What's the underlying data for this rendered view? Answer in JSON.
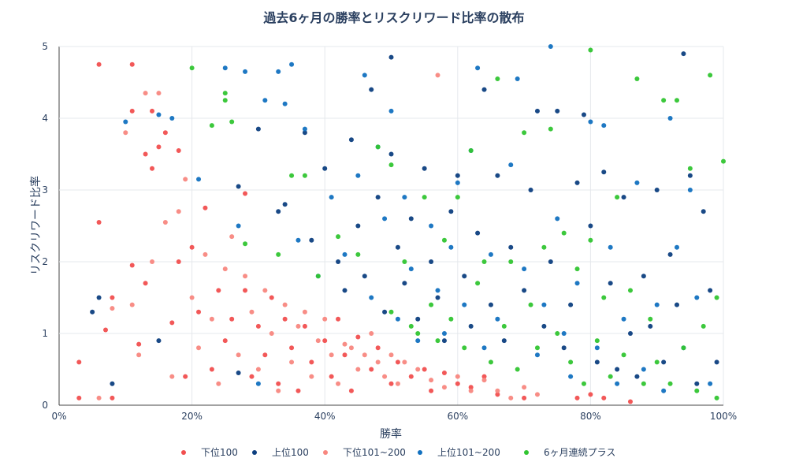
{
  "chart_data": {
    "type": "scatter",
    "title": "過去6ヶ月の勝率とリスクリワード比率の散布",
    "xlabel": "勝率",
    "ylabel": "リスクリワード比率",
    "xlim": [
      0,
      100
    ],
    "ylim": [
      0,
      5
    ],
    "x_ticks": [
      "0%",
      "20%",
      "40%",
      "60%",
      "80%",
      "100%"
    ],
    "y_ticks": [
      "0",
      "1",
      "2",
      "3",
      "4",
      "5"
    ],
    "grid": true,
    "legend_position": "bottom",
    "series": [
      {
        "name": "下位100",
        "color": "#f14f4f",
        "points": [
          [
            3,
            0.6
          ],
          [
            3,
            0.1
          ],
          [
            6,
            2.55
          ],
          [
            6,
            4.75
          ],
          [
            7,
            1.05
          ],
          [
            8,
            1.5
          ],
          [
            8,
            0.1
          ],
          [
            11,
            4.75
          ],
          [
            11,
            4.1
          ],
          [
            11,
            1.95
          ],
          [
            12,
            0.85
          ],
          [
            13,
            1.7
          ],
          [
            13,
            3.5
          ],
          [
            14,
            3.3
          ],
          [
            14,
            4.1
          ],
          [
            15,
            3.6
          ],
          [
            16,
            3.8
          ],
          [
            17,
            1.15
          ],
          [
            18,
            3.55
          ],
          [
            18,
            2.0
          ],
          [
            19,
            0.4
          ],
          [
            20,
            2.2
          ],
          [
            21,
            1.3
          ],
          [
            22,
            2.75
          ],
          [
            23,
            0.5
          ],
          [
            24,
            1.6
          ],
          [
            25,
            0.9
          ],
          [
            26,
            1.2
          ],
          [
            28,
            2.95
          ],
          [
            28,
            1.6
          ],
          [
            29,
            0.4
          ],
          [
            30,
            1.1
          ],
          [
            31,
            0.7
          ],
          [
            32,
            1.5
          ],
          [
            33,
            0.3
          ],
          [
            34,
            1.2
          ],
          [
            35,
            0.8
          ],
          [
            36,
            0.2
          ],
          [
            37,
            1.1
          ],
          [
            38,
            0.6
          ],
          [
            40,
            0.9
          ],
          [
            41,
            0.4
          ],
          [
            42,
            1.2
          ],
          [
            43,
            0.7
          ],
          [
            44,
            0.2
          ],
          [
            45,
            0.95
          ],
          [
            47,
            0.5
          ],
          [
            48,
            0.8
          ],
          [
            50,
            0.3
          ],
          [
            51,
            0.6
          ],
          [
            53,
            0.4
          ],
          [
            55,
            0.5
          ],
          [
            56,
            0.2
          ],
          [
            58,
            0.45
          ],
          [
            60,
            0.3
          ],
          [
            62,
            0.25
          ],
          [
            64,
            0.4
          ],
          [
            66,
            0.15
          ],
          [
            70,
            0.1
          ],
          [
            78,
            0.1
          ],
          [
            80,
            0.15
          ],
          [
            82,
            0.1
          ],
          [
            86,
            0.05
          ]
        ]
      },
      {
        "name": "上位100",
        "color": "#0d3f80",
        "points": [
          [
            5,
            1.3
          ],
          [
            6,
            1.5
          ],
          [
            8,
            0.3
          ],
          [
            15,
            0.9
          ],
          [
            27,
            3.05
          ],
          [
            27,
            0.45
          ],
          [
            30,
            3.85
          ],
          [
            33,
            2.7
          ],
          [
            34,
            2.8
          ],
          [
            37,
            3.8
          ],
          [
            38,
            2.3
          ],
          [
            40,
            3.3
          ],
          [
            42,
            2.0
          ],
          [
            43,
            1.6
          ],
          [
            44,
            3.7
          ],
          [
            45,
            2.5
          ],
          [
            46,
            1.8
          ],
          [
            47,
            4.4
          ],
          [
            48,
            2.9
          ],
          [
            49,
            1.3
          ],
          [
            50,
            4.85
          ],
          [
            50,
            3.5
          ],
          [
            51,
            2.2
          ],
          [
            52,
            1.7
          ],
          [
            53,
            2.6
          ],
          [
            54,
            1.2
          ],
          [
            55,
            3.3
          ],
          [
            56,
            2.0
          ],
          [
            57,
            1.5
          ],
          [
            58,
            0.9
          ],
          [
            59,
            2.7
          ],
          [
            60,
            3.2
          ],
          [
            61,
            1.8
          ],
          [
            62,
            1.1
          ],
          [
            63,
            2.4
          ],
          [
            64,
            4.4
          ],
          [
            65,
            1.4
          ],
          [
            66,
            3.2
          ],
          [
            67,
            0.9
          ],
          [
            68,
            2.2
          ],
          [
            70,
            1.6
          ],
          [
            71,
            3.0
          ],
          [
            72,
            4.1
          ],
          [
            73,
            1.1
          ],
          [
            74,
            2.0
          ],
          [
            75,
            4.1
          ],
          [
            76,
            0.8
          ],
          [
            77,
            1.4
          ],
          [
            78,
            3.1
          ],
          [
            79,
            4.05
          ],
          [
            80,
            2.5
          ],
          [
            81,
            0.6
          ],
          [
            82,
            3.25
          ],
          [
            83,
            1.7
          ],
          [
            84,
            0.5
          ],
          [
            85,
            2.9
          ],
          [
            86,
            1.0
          ],
          [
            87,
            0.4
          ],
          [
            88,
            1.8
          ],
          [
            89,
            1.1
          ],
          [
            90,
            3.0
          ],
          [
            91,
            0.6
          ],
          [
            92,
            2.1
          ],
          [
            93,
            1.4
          ],
          [
            94,
            4.9
          ],
          [
            95,
            3.2
          ],
          [
            96,
            0.3
          ],
          [
            97,
            2.7
          ],
          [
            98,
            1.6
          ],
          [
            99,
            0.6
          ]
        ]
      },
      {
        "name": "下位101~200",
        "color": "#f8877f",
        "points": [
          [
            6,
            0.1
          ],
          [
            8,
            1.35
          ],
          [
            10,
            3.8
          ],
          [
            11,
            1.4
          ],
          [
            12,
            0.7
          ],
          [
            13,
            4.35
          ],
          [
            14,
            2.0
          ],
          [
            15,
            4.35
          ],
          [
            16,
            2.55
          ],
          [
            17,
            0.4
          ],
          [
            18,
            2.7
          ],
          [
            19,
            3.15
          ],
          [
            20,
            1.5
          ],
          [
            21,
            0.8
          ],
          [
            22,
            2.1
          ],
          [
            23,
            1.2
          ],
          [
            24,
            0.3
          ],
          [
            25,
            1.9
          ],
          [
            26,
            2.35
          ],
          [
            27,
            0.7
          ],
          [
            28,
            1.8
          ],
          [
            29,
            1.3
          ],
          [
            30,
            0.5
          ],
          [
            31,
            1.6
          ],
          [
            32,
            1.0
          ],
          [
            33,
            0.2
          ],
          [
            34,
            1.4
          ],
          [
            35,
            0.6
          ],
          [
            36,
            1.1
          ],
          [
            37,
            1.3
          ],
          [
            38,
            0.4
          ],
          [
            39,
            0.9
          ],
          [
            40,
            1.2
          ],
          [
            41,
            0.7
          ],
          [
            42,
            0.3
          ],
          [
            43,
            0.85
          ],
          [
            44,
            0.8
          ],
          [
            45,
            0.5
          ],
          [
            46,
            0.7
          ],
          [
            47,
            1.0
          ],
          [
            48,
            0.6
          ],
          [
            49,
            0.4
          ],
          [
            50,
            0.7
          ],
          [
            51,
            0.3
          ],
          [
            52,
            0.6
          ],
          [
            54,
            0.5
          ],
          [
            56,
            0.35
          ],
          [
            57,
            4.6
          ],
          [
            58,
            0.25
          ],
          [
            60,
            0.4
          ],
          [
            62,
            0.2
          ],
          [
            64,
            0.35
          ],
          [
            66,
            0.2
          ],
          [
            68,
            0.1
          ],
          [
            70,
            0.25
          ],
          [
            72,
            0.15
          ]
        ]
      },
      {
        "name": "上位101~200",
        "color": "#1271c0",
        "points": [
          [
            10,
            3.95
          ],
          [
            15,
            4.05
          ],
          [
            17,
            4.0
          ],
          [
            21,
            3.15
          ],
          [
            25,
            4.7
          ],
          [
            27,
            2.5
          ],
          [
            28,
            4.65
          ],
          [
            30,
            0.3
          ],
          [
            31,
            4.25
          ],
          [
            33,
            4.65
          ],
          [
            34,
            4.2
          ],
          [
            35,
            4.75
          ],
          [
            36,
            2.3
          ],
          [
            37,
            3.85
          ],
          [
            39,
            1.8
          ],
          [
            41,
            2.9
          ],
          [
            43,
            2.1
          ],
          [
            45,
            3.2
          ],
          [
            46,
            4.6
          ],
          [
            47,
            1.5
          ],
          [
            48,
            3.6
          ],
          [
            49,
            2.6
          ],
          [
            50,
            4.1
          ],
          [
            51,
            1.2
          ],
          [
            52,
            2.9
          ],
          [
            53,
            1.9
          ],
          [
            54,
            0.9
          ],
          [
            56,
            2.5
          ],
          [
            57,
            1.6
          ],
          [
            58,
            1.0
          ],
          [
            59,
            2.2
          ],
          [
            60,
            3.1
          ],
          [
            61,
            1.4
          ],
          [
            62,
            3.55
          ],
          [
            63,
            4.7
          ],
          [
            64,
            0.8
          ],
          [
            65,
            2.1
          ],
          [
            66,
            1.2
          ],
          [
            68,
            3.35
          ],
          [
            69,
            4.55
          ],
          [
            70,
            1.9
          ],
          [
            72,
            0.7
          ],
          [
            73,
            1.4
          ],
          [
            74,
            5.0
          ],
          [
            75,
            2.6
          ],
          [
            76,
            1.0
          ],
          [
            77,
            0.4
          ],
          [
            78,
            1.7
          ],
          [
            80,
            3.95
          ],
          [
            81,
            0.8
          ],
          [
            82,
            3.9
          ],
          [
            83,
            2.2
          ],
          [
            84,
            0.3
          ],
          [
            85,
            1.2
          ],
          [
            87,
            3.1
          ],
          [
            88,
            0.5
          ],
          [
            90,
            1.4
          ],
          [
            91,
            0.2
          ],
          [
            92,
            4.0
          ],
          [
            93,
            2.2
          ],
          [
            94,
            0.8
          ],
          [
            95,
            3.0
          ],
          [
            96,
            1.5
          ],
          [
            98,
            0.3
          ]
        ]
      },
      {
        "name": "6ヶ月連続プラス",
        "color": "#31c531",
        "points": [
          [
            20,
            4.7
          ],
          [
            23,
            3.9
          ],
          [
            25,
            4.35
          ],
          [
            25,
            4.25
          ],
          [
            26,
            3.95
          ],
          [
            28,
            2.25
          ],
          [
            33,
            2.1
          ],
          [
            35,
            3.2
          ],
          [
            37,
            3.2
          ],
          [
            39,
            1.8
          ],
          [
            42,
            2.35
          ],
          [
            45,
            2.1
          ],
          [
            48,
            3.6
          ],
          [
            50,
            3.35
          ],
          [
            50,
            1.3
          ],
          [
            52,
            2.0
          ],
          [
            53,
            1.1
          ],
          [
            54,
            1.0
          ],
          [
            55,
            2.9
          ],
          [
            56,
            1.4
          ],
          [
            57,
            0.9
          ],
          [
            58,
            2.3
          ],
          [
            59,
            1.2
          ],
          [
            60,
            2.9
          ],
          [
            61,
            0.8
          ],
          [
            62,
            3.55
          ],
          [
            63,
            1.7
          ],
          [
            64,
            2.0
          ],
          [
            65,
            0.6
          ],
          [
            66,
            4.55
          ],
          [
            67,
            1.1
          ],
          [
            68,
            2.0
          ],
          [
            69,
            0.5
          ],
          [
            70,
            3.8
          ],
          [
            71,
            1.4
          ],
          [
            72,
            0.8
          ],
          [
            73,
            2.2
          ],
          [
            74,
            3.85
          ],
          [
            75,
            1.0
          ],
          [
            76,
            2.4
          ],
          [
            77,
            0.6
          ],
          [
            78,
            1.9
          ],
          [
            79,
            0.3
          ],
          [
            80,
            4.95
          ],
          [
            80,
            2.3
          ],
          [
            81,
            0.9
          ],
          [
            82,
            1.5
          ],
          [
            83,
            0.4
          ],
          [
            84,
            2.9
          ],
          [
            85,
            0.7
          ],
          [
            86,
            1.6
          ],
          [
            87,
            4.55
          ],
          [
            88,
            0.3
          ],
          [
            89,
            1.2
          ],
          [
            90,
            0.6
          ],
          [
            91,
            4.25
          ],
          [
            92,
            0.3
          ],
          [
            93,
            4.25
          ],
          [
            94,
            0.8
          ],
          [
            95,
            3.3
          ],
          [
            96,
            0.2
          ],
          [
            97,
            1.1
          ],
          [
            98,
            4.6
          ],
          [
            99,
            1.5
          ],
          [
            100,
            3.4
          ],
          [
            99,
            0.1
          ]
        ]
      }
    ]
  }
}
